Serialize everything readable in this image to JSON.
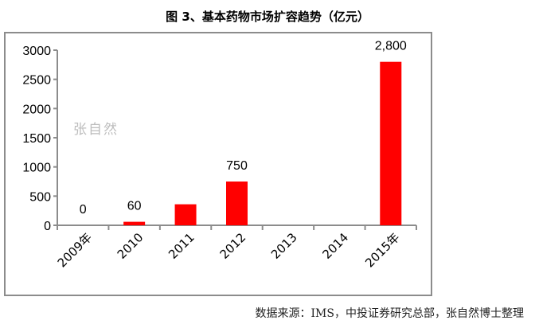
{
  "chart_data": {
    "type": "bar",
    "title": "图 3、基本药物市场扩容趋势（亿元）",
    "categories": [
      "2009年",
      "2010",
      "2011",
      "2012",
      "2013",
      "2014",
      "2015年"
    ],
    "values": [
      0,
      60,
      360,
      750,
      null,
      null,
      2800
    ],
    "data_labels": [
      "0",
      "60",
      "",
      "750",
      "",
      "",
      "2,800"
    ],
    "xlabel": "",
    "ylabel": "",
    "ylim": [
      0,
      3000
    ],
    "yticks": [
      0,
      500,
      1000,
      1500,
      2000,
      2500,
      3000
    ],
    "grid": false,
    "legend": "none",
    "bar_color": "#ff0000",
    "watermark": "张自然"
  },
  "source": "数据来源：IMS，中投证券研究总部，张自然博士整理"
}
